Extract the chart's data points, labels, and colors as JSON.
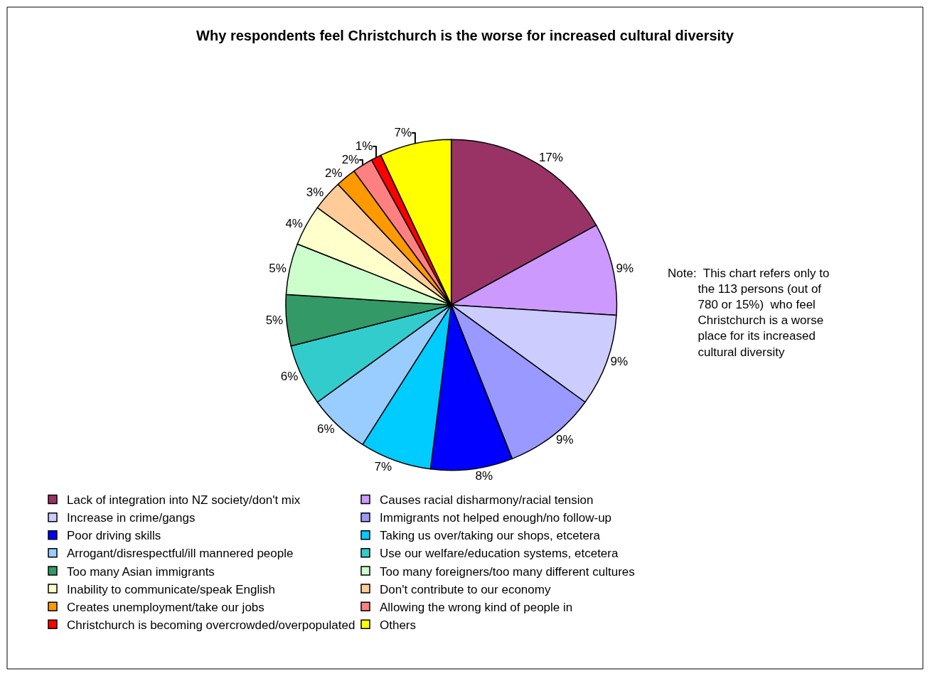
{
  "chart_data": {
    "type": "pie",
    "title": "Why respondents feel Christchurch is the worse for increased cultural diversity",
    "categories": [
      "Lack of integration into NZ society/don't mix",
      "Causes racial disharmony/racial tension",
      "Increase in crime/gangs",
      "Immigrants not helped enough/no follow-up",
      "Poor driving skills",
      "Taking us over/taking our shops, etcetera",
      "Arrogant/disrespectful/ill mannered people",
      "Use our welfare/education systems, etcetera",
      "Too many Asian immigrants",
      "Too many foreigners/too many different cultures",
      "Inability to communicate/speak English",
      "Don't contribute to our economy",
      "Creates unemployment/take our jobs",
      "Allowing the wrong kind of people in",
      "Christchurch is becoming overcrowded/overpopulated",
      "Others"
    ],
    "values": [
      17,
      9,
      9,
      9,
      8,
      7,
      6,
      6,
      5,
      5,
      4,
      3,
      2,
      2,
      1,
      7
    ],
    "value_labels": [
      "17%",
      "9%",
      "9%",
      "9%",
      "8%",
      "7%",
      "6%",
      "6%",
      "5%",
      "5%",
      "4%",
      "3%",
      "2%",
      "2%",
      "1%",
      "7%"
    ],
    "colors": [
      "#993366",
      "#cc99ff",
      "#ccccff",
      "#9999ff",
      "#0000ff",
      "#00ccff",
      "#99ccff",
      "#33cccc",
      "#339966",
      "#ccffcc",
      "#ffffcc",
      "#ffcc99",
      "#ff9900",
      "#ff8080",
      "#ff0000",
      "#ffff00"
    ],
    "annotations": [
      "Note:  This chart refers only to\n         the 113 persons (out of\n         780 or 15%)  who feel\n         Christchurch is a worse\n         place for its increased\n         cultural diversity"
    ],
    "legend": "bottom"
  }
}
